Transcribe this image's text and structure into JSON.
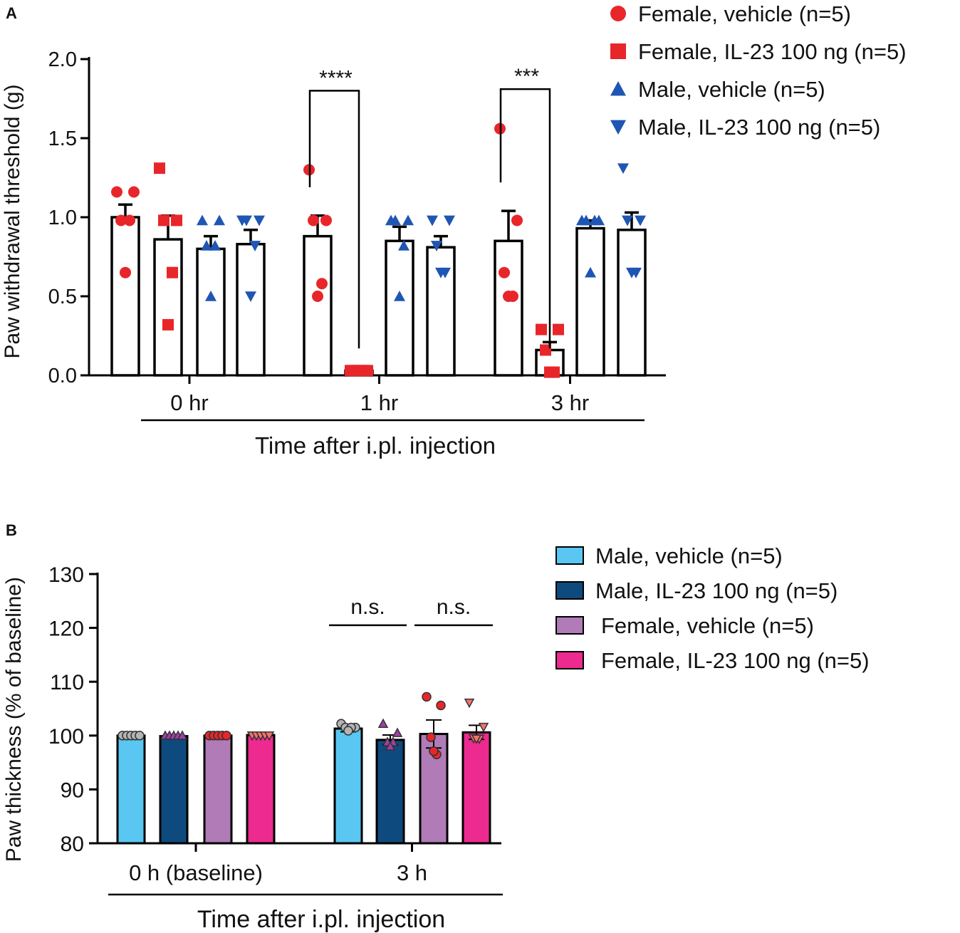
{
  "chart_data": [
    {
      "panel": "A",
      "type": "bar",
      "ylabel": "Paw withdrawal threshold (g)",
      "xlabel": "Time after i.pl. injection",
      "ylim": [
        0,
        2.0
      ],
      "yticks": [
        "0.0",
        "0.5",
        "1.0",
        "1.5",
        "2.0"
      ],
      "categories": [
        "0 hr",
        "1 hr",
        "3 hr"
      ],
      "series": [
        {
          "name": "Female, vehicle (n=5)",
          "marker": "circle",
          "color": "#e8262a",
          "values": [
            1.0,
            0.88,
            0.85
          ],
          "sem": [
            0.08,
            0.13,
            0.19
          ],
          "points": [
            [
              1.16,
              1.16,
              0.98,
              0.98,
              0.65
            ],
            [
              1.3,
              0.98,
              0.98,
              0.58,
              0.5
            ],
            [
              1.56,
              0.98,
              0.65,
              0.5,
              0.5
            ]
          ]
        },
        {
          "name": "Female, IL-23 100 ng (n=5)",
          "marker": "square",
          "color": "#e8262a",
          "values": [
            0.86,
            0.03,
            0.16
          ],
          "sem": [
            0.15,
            0.01,
            0.05
          ],
          "points": [
            [
              1.31,
              0.98,
              0.98,
              0.65,
              0.32
            ],
            [
              0.03,
              0.03,
              0.03,
              0.03,
              0.03
            ],
            [
              0.29,
              0.29,
              0.16,
              0.02,
              0.02
            ]
          ]
        },
        {
          "name": "Male, vehicle (n=5)",
          "marker": "triangle-up",
          "color": "#1f56b4",
          "values": [
            0.8,
            0.85,
            0.93
          ],
          "sem": [
            0.08,
            0.09,
            0.05
          ],
          "points": [
            [
              0.98,
              0.98,
              0.82,
              0.82,
              0.5
            ],
            [
              0.98,
              0.98,
              0.98,
              0.82,
              0.5
            ],
            [
              0.98,
              0.98,
              0.98,
              0.98,
              0.65
            ]
          ]
        },
        {
          "name": "Male, IL-23 100 ng (n=5)",
          "marker": "triangle-down",
          "color": "#1f56b4",
          "values": [
            0.83,
            0.81,
            0.92
          ],
          "sem": [
            0.09,
            0.07,
            0.11
          ],
          "points": [
            [
              0.98,
              0.98,
              0.98,
              0.82,
              0.5
            ],
            [
              0.98,
              0.98,
              0.82,
              0.65,
              0.65
            ],
            [
              1.31,
              0.98,
              0.98,
              0.65,
              0.65
            ]
          ]
        }
      ],
      "annotations": [
        {
          "text": "****",
          "category": 1,
          "from_series": 0,
          "to_series": 1,
          "bracket_top": 1.8
        },
        {
          "text": "***",
          "category": 2,
          "from_series": 0,
          "to_series": 1,
          "bracket_top": 1.81
        }
      ],
      "legend": "top-right"
    },
    {
      "panel": "B",
      "type": "bar",
      "ylabel": "Paw thickness (% of baseline)",
      "xlabel": "Time after i.pl. injection",
      "ylim": [
        80,
        130
      ],
      "yticks": [
        "80",
        "90",
        "100",
        "110",
        "120",
        "130"
      ],
      "categories": [
        "0 h (baseline)",
        "3 h"
      ],
      "series": [
        {
          "name": "Male, vehicle (n=5)",
          "color": "#59c7f1",
          "point_color": "#b4b4b4",
          "marker": "circle",
          "values": [
            100.0,
            101.3
          ],
          "sem": [
            0,
            0.6
          ],
          "points": [
            [
              100,
              100,
              100,
              100,
              100
            ],
            [
              102.2,
              101.5,
              101.5,
              101.5,
              100.9
            ]
          ]
        },
        {
          "name": "Male, IL-23 100 ng (n=5)",
          "color": "#0e4a7e",
          "point_color": "#a13fa6",
          "marker": "triangle-up",
          "values": [
            99.9,
            99.2
          ],
          "sem": [
            0,
            0.9
          ],
          "points": [
            [
              100,
              100,
              100,
              100,
              100
            ],
            [
              102.2,
              100.5,
              98.8,
              98.8,
              98.0
            ]
          ]
        },
        {
          "name": "Female, vehicle (n=5)",
          "color": "#b07bb6",
          "point_color": "#e8262a",
          "marker": "circle",
          "values": [
            100.0,
            100.3
          ],
          "sem": [
            0,
            2.6
          ],
          "points": [
            [
              100,
              100,
              100,
              100,
              100
            ],
            [
              107.2,
              105.6,
              99.7,
              96.5,
              97.1
            ]
          ]
        },
        {
          "name": "Female, IL-23 100 ng (n=5)",
          "color": "#ec2a8f",
          "point_color": "#f4736a",
          "marker": "triangle-down",
          "values": [
            100.1,
            100.6
          ],
          "sem": [
            0,
            1.3
          ],
          "points": [
            [
              100,
              100,
              100,
              100,
              100
            ],
            [
              106.1,
              101.6,
              99.5,
              99.4,
              99.4
            ]
          ]
        }
      ],
      "annotations": [
        {
          "text": "n.s.",
          "category": 1,
          "from_series": 0,
          "to_series": 1,
          "line_y": 120.5
        },
        {
          "text": "n.s.",
          "category": 1,
          "from_series": 2,
          "to_series": 3,
          "line_y": 120.5
        }
      ],
      "legend": "top-right"
    }
  ],
  "panel_labels": [
    "A",
    "B"
  ]
}
